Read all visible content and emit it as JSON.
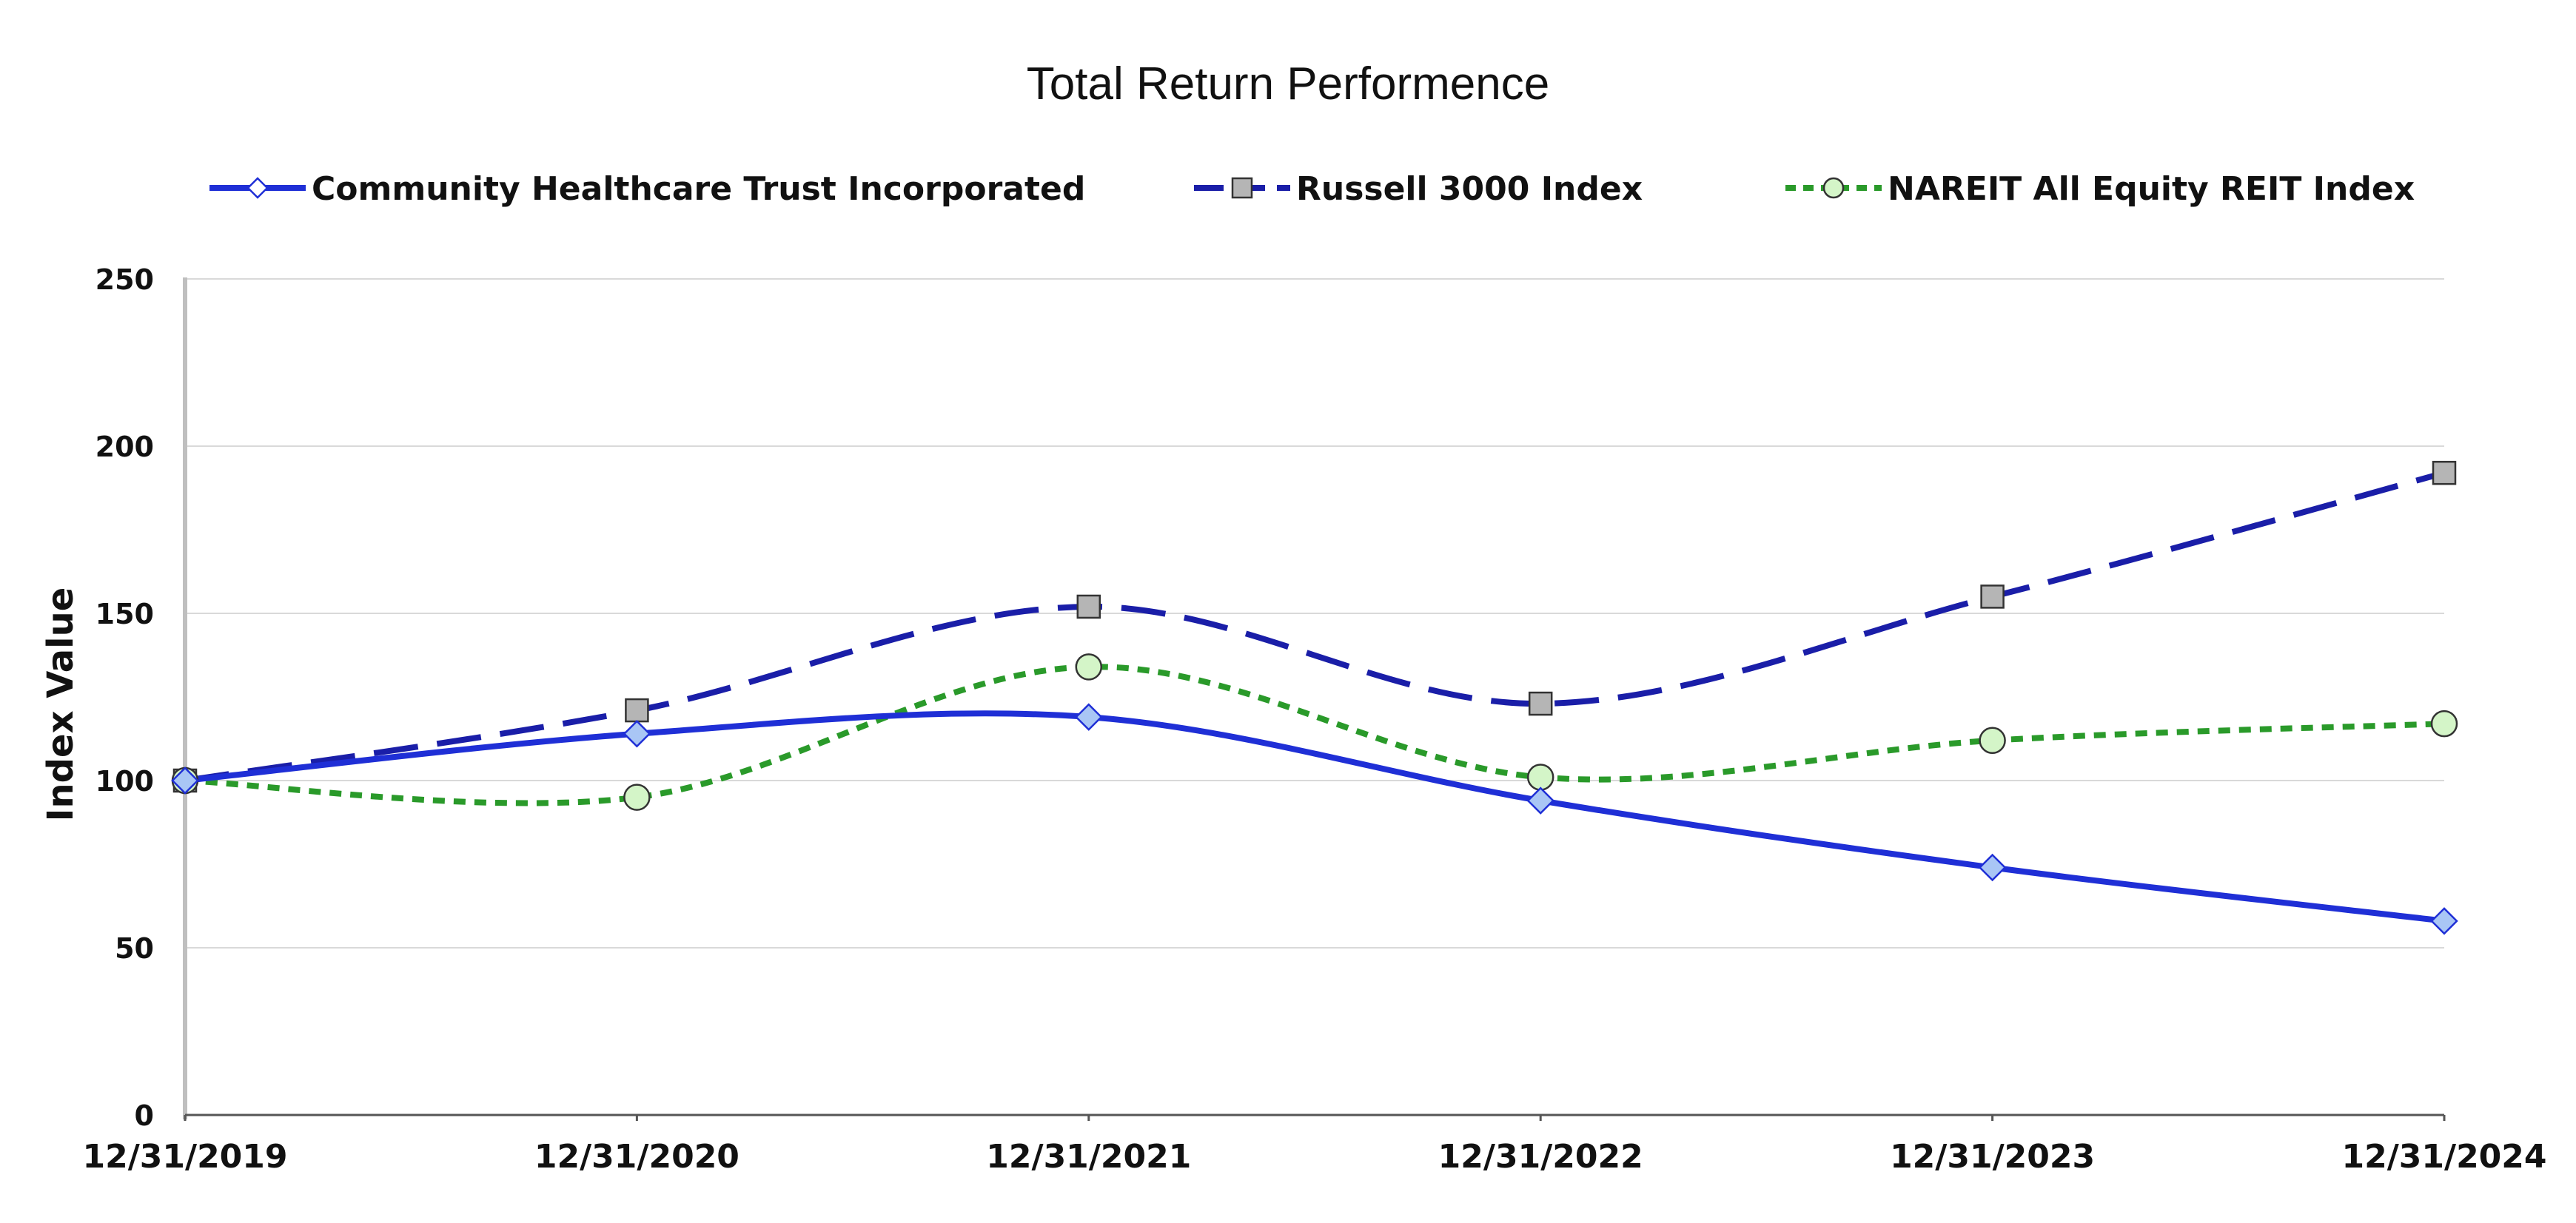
{
  "chart_data": {
    "type": "line",
    "title": "Total Return Performence",
    "ylabel": "Index Value",
    "xlabel": "",
    "categories": [
      "12/31/2019",
      "12/31/2020",
      "12/31/2021",
      "12/31/2022",
      "12/31/2023",
      "12/31/2024"
    ],
    "ylim": [
      0,
      250
    ],
    "yticks": [
      0,
      50,
      100,
      150,
      200,
      250
    ],
    "grid": "horizontal",
    "legend_position": "top",
    "series": [
      {
        "name": "Community Healthcare Trust Incorporated",
        "values": [
          100,
          114,
          119,
          94,
          74,
          58
        ],
        "color": "#1f2fd6",
        "line_style": "solid",
        "marker": "diamond",
        "marker_fill": "#a9c6f5"
      },
      {
        "name": "Russell 3000 Index",
        "values": [
          100,
          121,
          152,
          123,
          155,
          192
        ],
        "color": "#1a1ea8",
        "line_style": "dashed",
        "marker": "square",
        "marker_fill": "#b5b5b5"
      },
      {
        "name": "NAREIT All Equity REIT Index",
        "values": [
          100,
          95,
          134,
          101,
          112,
          117
        ],
        "color": "#2a9a2a",
        "line_style": "dotted",
        "marker": "circle",
        "marker_fill": "#d4f5c8"
      }
    ]
  }
}
